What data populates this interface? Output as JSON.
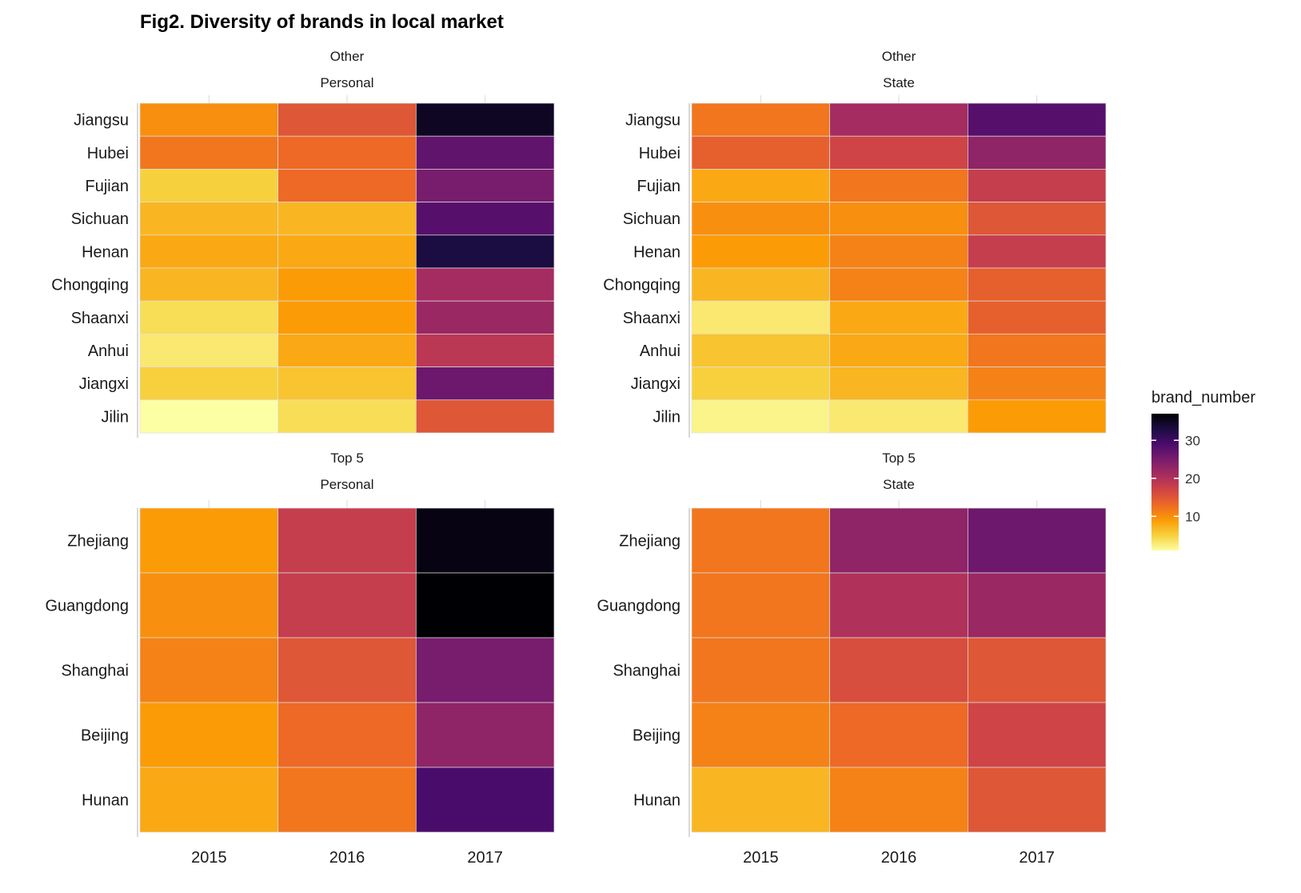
{
  "chart_data": {
    "type": "heatmap",
    "title": "Fig2. Diversity of brands in local market",
    "x": [
      "2015",
      "2016",
      "2017"
    ],
    "legend": {
      "title": "brand_number",
      "ticks": [
        10,
        20,
        30
      ],
      "range": [
        1,
        37
      ],
      "placement": "right"
    },
    "palette": [
      "#fcffa4",
      "#f7d13d",
      "#fb9b06",
      "#ed6925",
      "#cf4446",
      "#a52c60",
      "#781c6d",
      "#4a0c6b",
      "#1b0c41",
      "#000004"
    ],
    "panels": [
      {
        "id": "other-personal",
        "group": "Other",
        "type": "Personal",
        "rows": [
          "Jiangsu",
          "Hubei",
          "Fujian",
          "Sichuan",
          "Henan",
          "Chongqing",
          "Shaanxi",
          "Anhui",
          "Jiangxi",
          "Jilin"
        ],
        "values": [
          [
            10,
            15,
            35
          ],
          [
            12,
            13,
            27
          ],
          [
            5,
            13,
            25
          ],
          [
            7,
            7,
            28
          ],
          [
            8,
            8,
            33
          ],
          [
            7,
            9,
            21
          ],
          [
            4,
            9,
            22
          ],
          [
            3,
            8,
            19
          ],
          [
            5,
            6,
            26
          ],
          [
            1,
            4,
            15
          ]
        ]
      },
      {
        "id": "other-state",
        "group": "Other",
        "type": "State",
        "rows": [
          "Jiangsu",
          "Hubei",
          "Fujian",
          "Sichuan",
          "Henan",
          "Chongqing",
          "Shaanxi",
          "Anhui",
          "Jiangxi",
          "Jilin"
        ],
        "values": [
          [
            12,
            21,
            28
          ],
          [
            14,
            17,
            23
          ],
          [
            8,
            12,
            18
          ],
          [
            10,
            10,
            15
          ],
          [
            9,
            11,
            18
          ],
          [
            7,
            11,
            14
          ],
          [
            3,
            8,
            14
          ],
          [
            6,
            8,
            12
          ],
          [
            5,
            7,
            11
          ],
          [
            2,
            3,
            9
          ]
        ]
      },
      {
        "id": "top5-personal",
        "group": "Top 5",
        "type": "Personal",
        "rows": [
          "Zhejiang",
          "Guangdong",
          "Shanghai",
          "Beijing",
          "Hunan"
        ],
        "values": [
          [
            9,
            18,
            36
          ],
          [
            10,
            18,
            37
          ],
          [
            11,
            15,
            25
          ],
          [
            9,
            13,
            23
          ],
          [
            8,
            12,
            29
          ]
        ]
      },
      {
        "id": "top5-state",
        "group": "Top 5",
        "type": "State",
        "rows": [
          "Zhejiang",
          "Guangdong",
          "Shanghai",
          "Beijing",
          "Hunan"
        ],
        "values": [
          [
            12,
            23,
            26
          ],
          [
            12,
            20,
            22
          ],
          [
            12,
            16,
            15
          ],
          [
            11,
            13,
            17
          ],
          [
            7,
            11,
            15
          ]
        ]
      }
    ]
  }
}
